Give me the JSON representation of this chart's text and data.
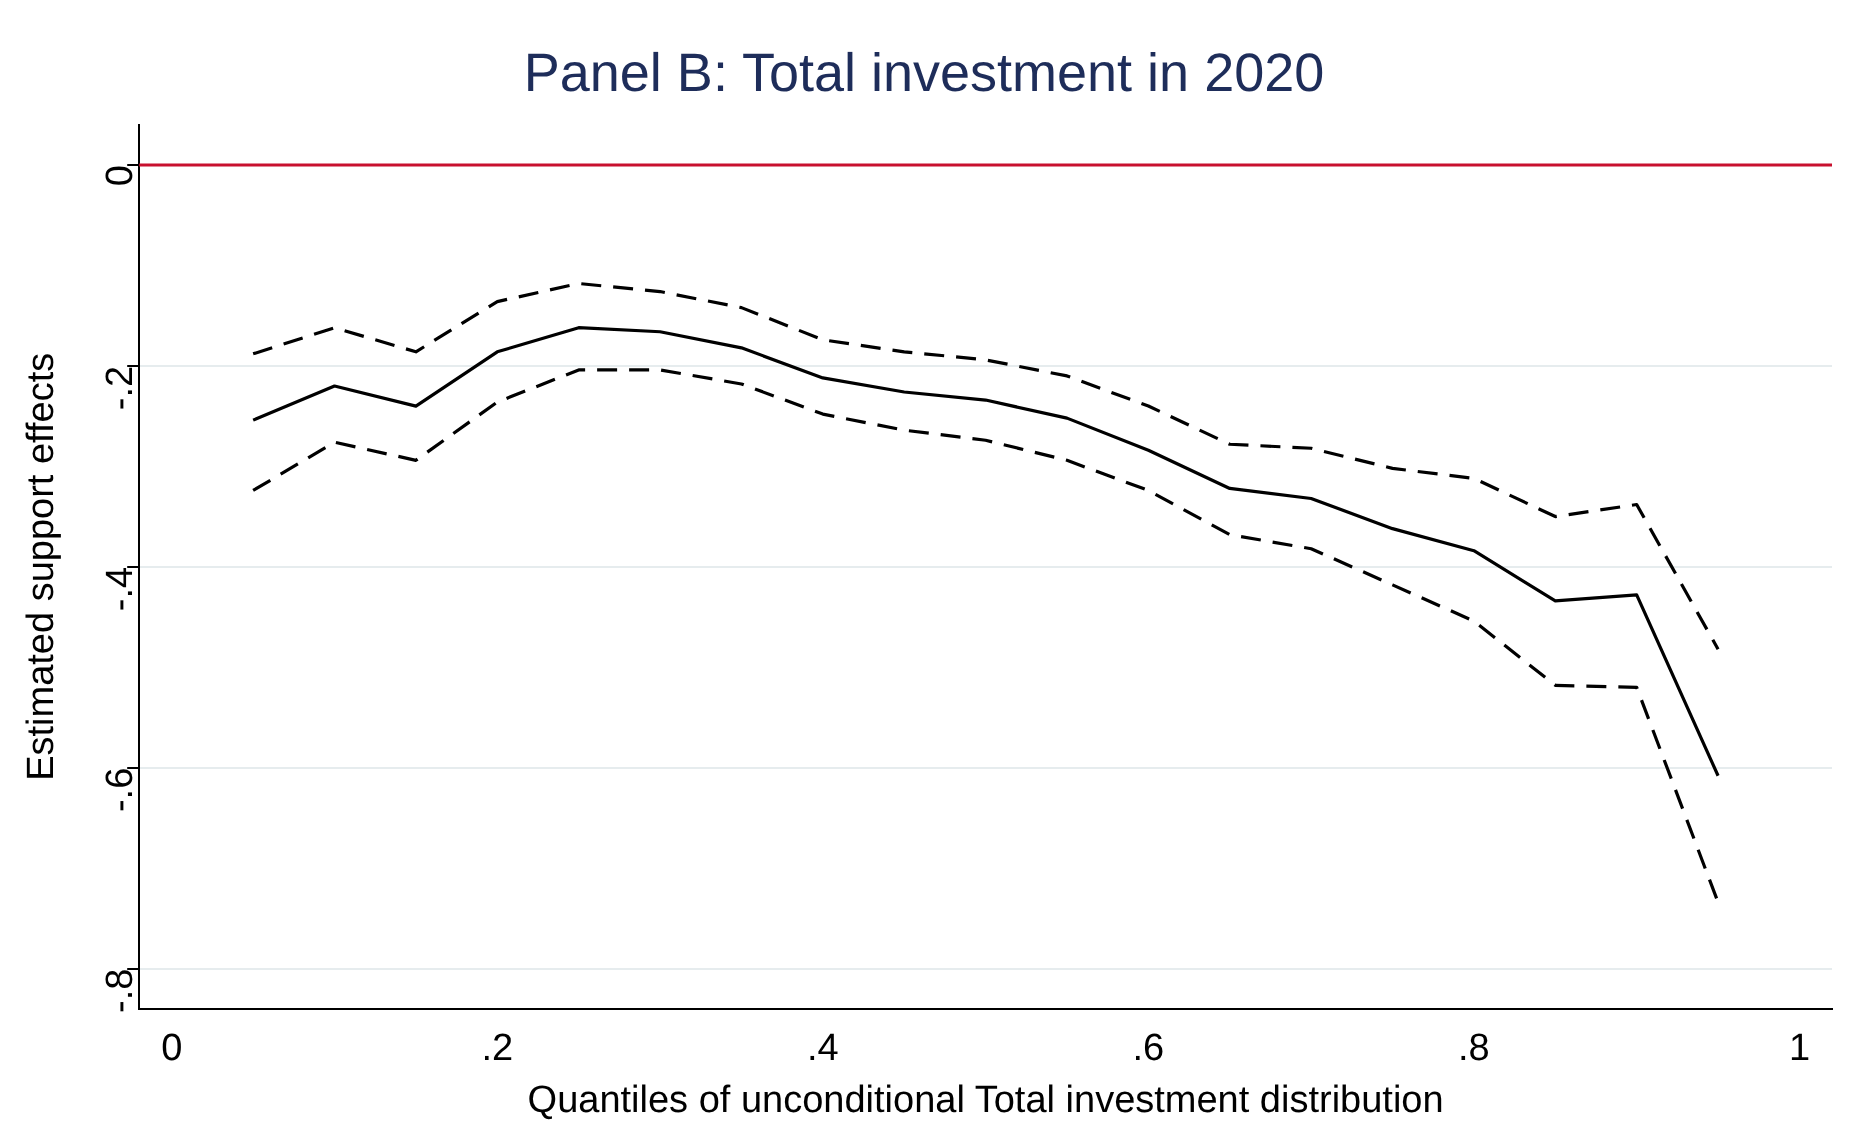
{
  "chart_data": {
    "type": "line",
    "title": "Panel B: Total investment in 2020",
    "xlabel": "Quantiles of unconditional Total investment distribution",
    "ylabel": "Estimated support effects",
    "x": [
      0.05,
      0.1,
      0.15,
      0.2,
      0.25,
      0.3,
      0.35,
      0.4,
      0.45,
      0.5,
      0.55,
      0.6,
      0.65,
      0.7,
      0.75,
      0.8,
      0.85,
      0.9,
      0.95
    ],
    "series": [
      {
        "color": "#000000",
        "line_style": "dashed",
        "values": [
          -0.188,
          -0.162,
          -0.186,
          -0.136,
          -0.118,
          -0.126,
          -0.142,
          -0.174,
          -0.186,
          -0.194,
          -0.21,
          -0.24,
          -0.278,
          -0.282,
          -0.302,
          -0.312,
          -0.35,
          -0.338,
          -0.482
        ]
      },
      {
        "color": "#000000",
        "line_style": "solid",
        "values": [
          -0.254,
          -0.22,
          -0.24,
          -0.186,
          -0.162,
          -0.166,
          -0.182,
          -0.212,
          -0.226,
          -0.234,
          -0.252,
          -0.284,
          -0.322,
          -0.332,
          -0.362,
          -0.384,
          -0.434,
          -0.428,
          -0.608
        ]
      },
      {
        "color": "#000000",
        "line_style": "dashed",
        "values": [
          -0.324,
          -0.276,
          -0.294,
          -0.236,
          -0.204,
          -0.204,
          -0.218,
          -0.248,
          -0.264,
          -0.274,
          -0.294,
          -0.324,
          -0.368,
          -0.382,
          -0.418,
          -0.454,
          -0.518,
          -0.52,
          -0.734
        ]
      }
    ],
    "xlim": [
      -0.02,
      1.02
    ],
    "xticks": [
      {
        "value": 0,
        "label": "0"
      },
      {
        "value": 0.2,
        "label": ".2"
      },
      {
        "value": 0.4,
        "label": ".4"
      },
      {
        "value": 0.6,
        "label": ".6"
      },
      {
        "value": 0.8,
        "label": ".8"
      },
      {
        "value": 1,
        "label": "1"
      }
    ],
    "ylim": [
      -0.84,
      0.04
    ],
    "yticks": [
      {
        "value": 0,
        "label": "0"
      },
      {
        "value": -0.2,
        "label": "-.2"
      },
      {
        "value": -0.4,
        "label": "-.4"
      },
      {
        "value": -0.6,
        "label": "-.6"
      },
      {
        "value": -0.8,
        "label": "-.8"
      }
    ],
    "ref_lines": [
      {
        "axis": "y",
        "value": 0,
        "color": "#c8102e"
      }
    ],
    "grid": "y",
    "legend": false,
    "marker": "none"
  }
}
